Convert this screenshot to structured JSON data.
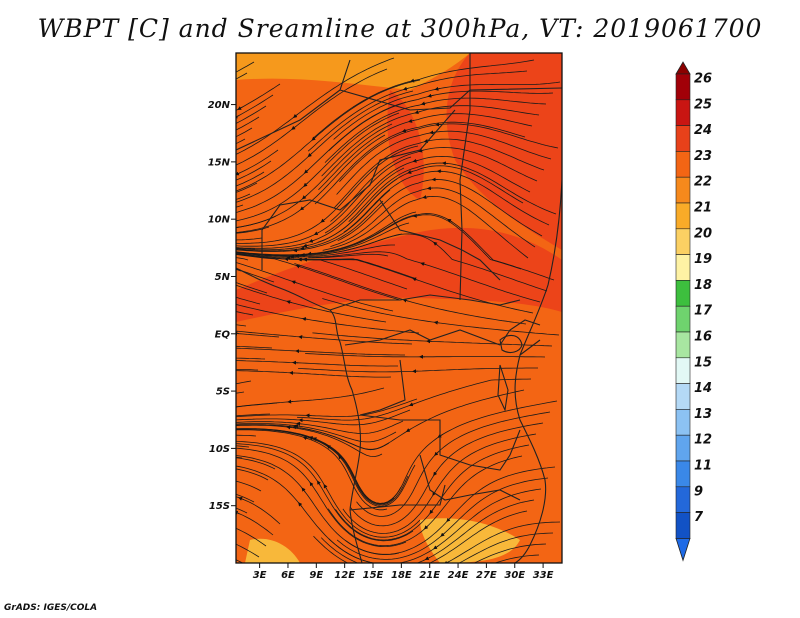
{
  "title": "WBPT [C] and Sreamline at 300hPa, VT: 2019061700",
  "credit": "GrADS: IGES/COLA",
  "map": {
    "lat_ticks": [
      {
        "value": 20,
        "label": "20N"
      },
      {
        "value": 15,
        "label": "15N"
      },
      {
        "value": 10,
        "label": "10N"
      },
      {
        "value": 5,
        "label": "5N"
      },
      {
        "value": 0,
        "label": "EQ"
      },
      {
        "value": -5,
        "label": "5S"
      },
      {
        "value": -10,
        "label": "10S"
      },
      {
        "value": -15,
        "label": "15S"
      }
    ],
    "lon_ticks": [
      {
        "value": 3,
        "label": "3E"
      },
      {
        "value": 6,
        "label": "6E"
      },
      {
        "value": 9,
        "label": "9E"
      },
      {
        "value": 12,
        "label": "12E"
      },
      {
        "value": 15,
        "label": "15E"
      },
      {
        "value": 18,
        "label": "18E"
      },
      {
        "value": 21,
        "label": "21E"
      },
      {
        "value": 24,
        "label": "24E"
      },
      {
        "value": 27,
        "label": "27E"
      },
      {
        "value": 30,
        "label": "30E"
      },
      {
        "value": 33,
        "label": "33E"
      }
    ],
    "lon_range": [
      0.5,
      35
    ],
    "lat_range": [
      -20,
      24.5
    ],
    "field_colors": {
      "background": "#f36514",
      "warm_band": "#ec4419",
      "cool_patch": "#f6991c",
      "pale_patch": "#f8b83a"
    }
  },
  "colorbar": {
    "labels": [
      "26",
      "25",
      "24",
      "23",
      "22",
      "21",
      "20",
      "19",
      "18",
      "17",
      "16",
      "15",
      "14",
      "13",
      "12",
      "11",
      "9",
      "7"
    ],
    "colors": [
      "#a10008",
      "#c91512",
      "#e8411a",
      "#f36514",
      "#f6891c",
      "#f9ab28",
      "#fbd063",
      "#fef2a4",
      "#3dbf3e",
      "#6fd36e",
      "#a8e6a1",
      "#e2f8f5",
      "#b4d9f6",
      "#8cc2f3",
      "#60a5ee",
      "#3a88e8",
      "#2368da",
      "#1252c5"
    ],
    "top_color": "#8b0000",
    "bottom_color": "#1e6ae6"
  }
}
